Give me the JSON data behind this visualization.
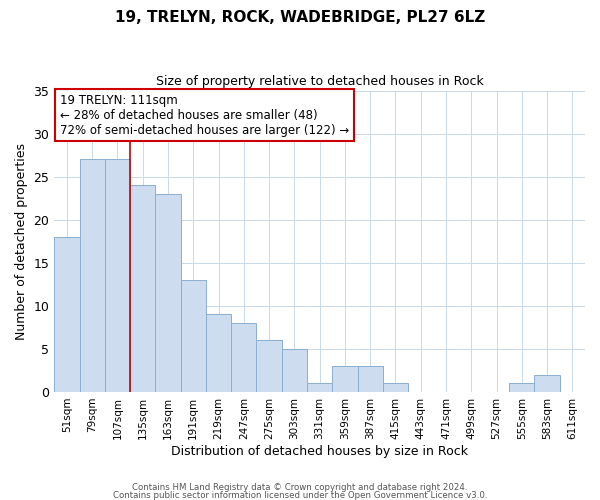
{
  "title": "19, TRELYN, ROCK, WADEBRIDGE, PL27 6LZ",
  "subtitle": "Size of property relative to detached houses in Rock",
  "xlabel": "Distribution of detached houses by size in Rock",
  "ylabel": "Number of detached properties",
  "bar_labels": [
    "51sqm",
    "79sqm",
    "107sqm",
    "135sqm",
    "163sqm",
    "191sqm",
    "219sqm",
    "247sqm",
    "275sqm",
    "303sqm",
    "331sqm",
    "359sqm",
    "387sqm",
    "415sqm",
    "443sqm",
    "471sqm",
    "499sqm",
    "527sqm",
    "555sqm",
    "583sqm",
    "611sqm"
  ],
  "bar_values": [
    18,
    27,
    27,
    24,
    23,
    13,
    9,
    8,
    6,
    5,
    1,
    3,
    3,
    1,
    0,
    0,
    0,
    0,
    1,
    2,
    0
  ],
  "bar_color": "#cddcee",
  "bar_edge_color": "#8aafd0",
  "vline_x": 2.5,
  "vline_color": "#cc0000",
  "ylim": [
    0,
    35
  ],
  "yticks": [
    0,
    5,
    10,
    15,
    20,
    25,
    30,
    35
  ],
  "annotation_title": "19 TRELYN: 111sqm",
  "annotation_line1": "← 28% of detached houses are smaller (48)",
  "annotation_line2": "72% of semi-detached houses are larger (122) →",
  "annotation_box_color": "#ffffff",
  "annotation_box_edge": "#cc0000",
  "footer1": "Contains HM Land Registry data © Crown copyright and database right 2024.",
  "footer2": "Contains public sector information licensed under the Open Government Licence v3.0.",
  "background_color": "#ffffff",
  "grid_color": "#c8d8e8"
}
